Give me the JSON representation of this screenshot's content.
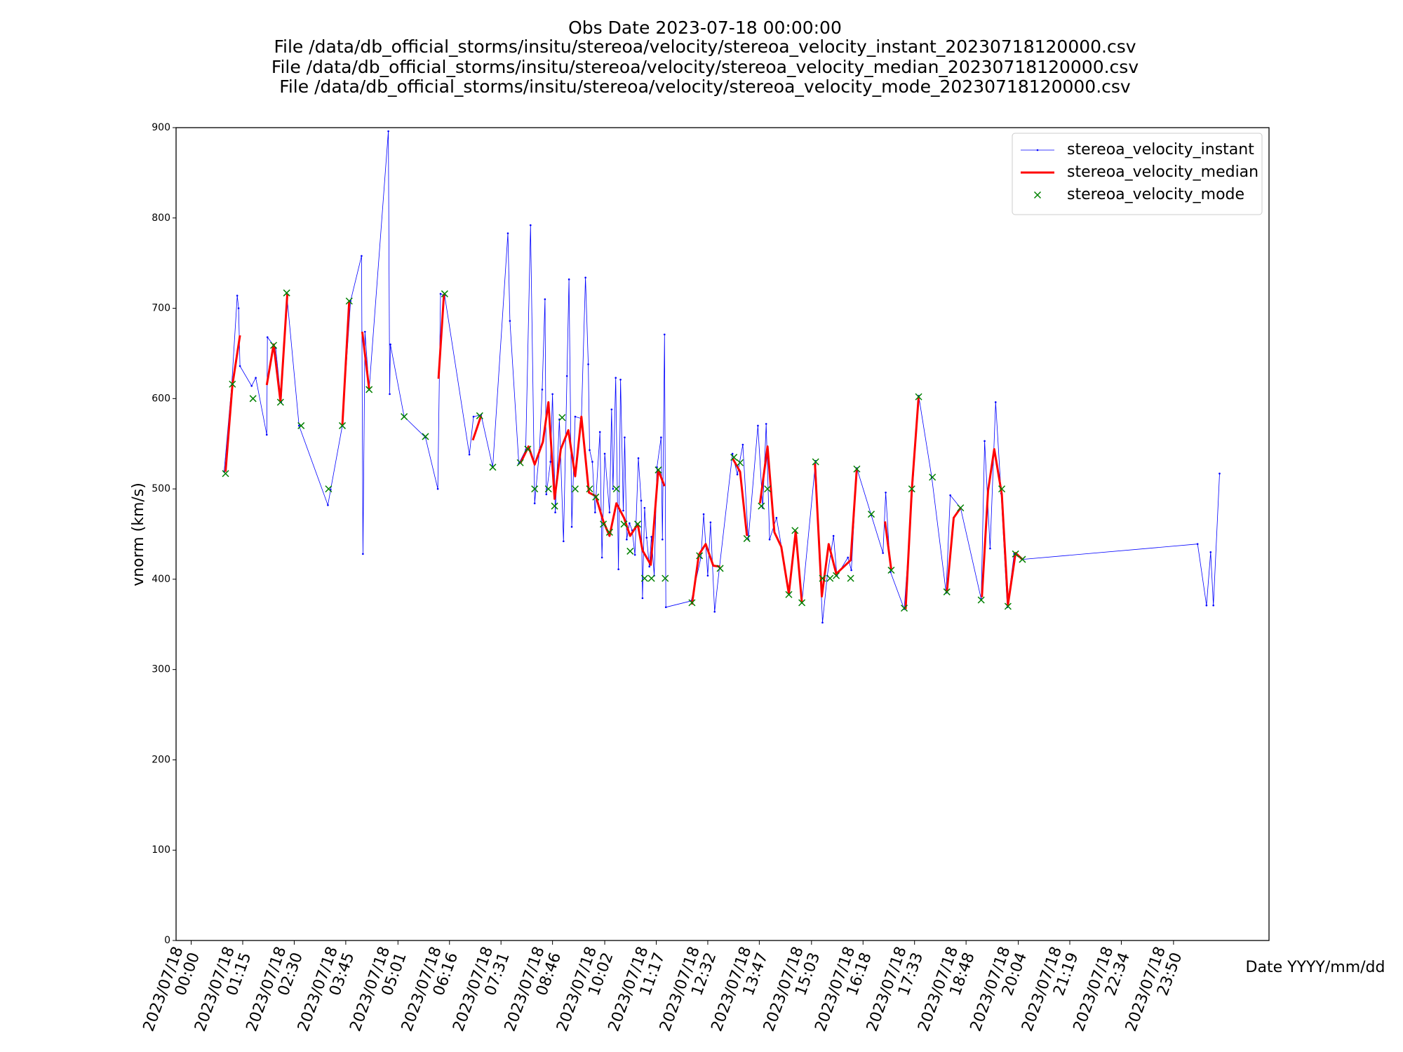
{
  "chart_data": {
    "type": "line",
    "title": [
      "Obs Date 2023-07-18 00:00:00",
      "File /data/db_official_storms/insitu/stereoa/velocity/stereoa_velocity_instant_20230718120000.csv",
      "File /data/db_official_storms/insitu/stereoa/velocity/stereoa_velocity_median_20230718120000.csv",
      "File /data/db_official_storms/insitu/stereoa/velocity/stereoa_velocity_mode_20230718120000.csv"
    ],
    "xlabel": "Date YYYY/mm/dd",
    "ylabel": "vnorm (km/s)",
    "xlim": [
      "2023-07-17T23:38",
      "2023-07-19T02:09"
    ],
    "xticks": [
      {
        "value": "2023-07-18T00:00",
        "label": [
          "2023/07/18",
          "00:00"
        ]
      },
      {
        "value": "2023-07-18T01:15",
        "label": [
          "2023/07/18",
          "01:15"
        ]
      },
      {
        "value": "2023-07-18T02:30",
        "label": [
          "2023/07/18",
          "02:30"
        ]
      },
      {
        "value": "2023-07-18T03:45",
        "label": [
          "2023/07/18",
          "03:45"
        ]
      },
      {
        "value": "2023-07-18T05:01",
        "label": [
          "2023/07/18",
          "05:01"
        ]
      },
      {
        "value": "2023-07-18T06:16",
        "label": [
          "2023/07/18",
          "06:16"
        ]
      },
      {
        "value": "2023-07-18T07:31",
        "label": [
          "2023/07/18",
          "07:31"
        ]
      },
      {
        "value": "2023-07-18T08:46",
        "label": [
          "2023/07/18",
          "08:46"
        ]
      },
      {
        "value": "2023-07-18T10:02",
        "label": [
          "2023/07/18",
          "10:02"
        ]
      },
      {
        "value": "2023-07-18T11:17",
        "label": [
          "2023/07/18",
          "11:17"
        ]
      },
      {
        "value": "2023-07-18T12:32",
        "label": [
          "2023/07/18",
          "12:32"
        ]
      },
      {
        "value": "2023-07-18T13:47",
        "label": [
          "2023/07/18",
          "13:47"
        ]
      },
      {
        "value": "2023-07-18T15:03",
        "label": [
          "2023/07/18",
          "15:03"
        ]
      },
      {
        "value": "2023-07-18T16:18",
        "label": [
          "2023/07/18",
          "16:18"
        ]
      },
      {
        "value": "2023-07-18T17:33",
        "label": [
          "2023/07/18",
          "17:33"
        ]
      },
      {
        "value": "2023-07-18T18:48",
        "label": [
          "2023/07/18",
          "18:48"
        ]
      },
      {
        "value": "2023-07-18T20:04",
        "label": [
          "2023/07/18",
          "20:04"
        ]
      },
      {
        "value": "2023-07-18T21:19",
        "label": [
          "2023/07/18",
          "21:19"
        ]
      },
      {
        "value": "2023-07-18T22:34",
        "label": [
          "2023/07/18",
          "22:34"
        ]
      },
      {
        "value": "2023-07-18T23:50",
        "label": [
          "2023/07/18",
          "23:50"
        ]
      }
    ],
    "ylim": [
      0,
      900
    ],
    "yticks": [
      0,
      100,
      200,
      300,
      400,
      500,
      600,
      700,
      800,
      900
    ],
    "grid": false,
    "legend": "upper right",
    "series": [
      {
        "name": "stereoa_velocity_instant",
        "color": "#0000ff",
        "style": "line",
        "x": [
          "2023-07-18T00:48",
          "2023-07-18T00:59",
          "2023-07-18T01:07",
          "2023-07-18T01:09",
          "2023-07-18T01:11",
          "2023-07-18T01:28",
          "2023-07-18T01:34",
          "2023-07-18T01:50",
          "2023-07-18T01:51",
          "2023-07-18T02:03",
          "2023-07-18T02:11",
          "2023-07-18T02:19",
          "2023-07-18T02:37",
          "2023-07-18T03:19",
          "2023-07-18T03:23",
          "2023-07-18T03:40",
          "2023-07-18T03:52",
          "2023-07-18T04:08",
          "2023-07-18T04:10",
          "2023-07-18T04:13",
          "2023-07-18T04:19",
          "2023-07-18T04:47",
          "2023-07-18T04:49",
          "2023-07-18T04:50",
          "2023-07-18T05:10",
          "2023-07-18T05:41",
          "2023-07-18T05:59",
          "2023-07-18T06:03",
          "2023-07-18T06:09",
          "2023-07-18T06:45",
          "2023-07-18T06:51",
          "2023-07-18T07:02",
          "2023-07-18T07:19",
          "2023-07-18T07:41",
          "2023-07-18T07:44",
          "2023-07-18T07:57",
          "2023-07-18T08:07",
          "2023-07-18T08:14",
          "2023-07-18T08:20",
          "2023-07-18T08:27",
          "2023-07-18T08:31",
          "2023-07-18T08:35",
          "2023-07-18T08:37",
          "2023-07-18T08:43",
          "2023-07-18T08:46",
          "2023-07-18T08:50",
          "2023-07-18T08:56",
          "2023-07-18T09:02",
          "2023-07-18T09:07",
          "2023-07-18T09:10",
          "2023-07-18T09:14",
          "2023-07-18T09:19",
          "2023-07-18T09:28",
          "2023-07-18T09:34",
          "2023-07-18T09:38",
          "2023-07-18T09:40",
          "2023-07-18T09:44",
          "2023-07-18T09:48",
          "2023-07-18T09:55",
          "2023-07-18T09:58",
          "2023-07-18T10:02",
          "2023-07-18T10:09",
          "2023-07-18T10:12",
          "2023-07-18T10:14",
          "2023-07-18T10:18",
          "2023-07-18T10:22",
          "2023-07-18T10:25",
          "2023-07-18T10:29",
          "2023-07-18T10:31",
          "2023-07-18T10:34",
          "2023-07-18T10:38",
          "2023-07-18T10:42",
          "2023-07-18T10:46",
          "2023-07-18T10:51",
          "2023-07-18T10:55",
          "2023-07-18T10:57",
          "2023-07-18T11:00",
          "2023-07-18T11:03",
          "2023-07-18T11:07",
          "2023-07-18T11:10",
          "2023-07-18T11:14",
          "2023-07-18T11:18",
          "2023-07-18T11:24",
          "2023-07-18T11:26",
          "2023-07-18T11:29",
          "2023-07-18T11:31",
          "2023-07-18T12:08",
          "2023-07-18T12:22",
          "2023-07-18T12:26",
          "2023-07-18T12:32",
          "2023-07-18T12:36",
          "2023-07-18T12:42",
          "2023-07-18T12:49",
          "2023-07-18T13:08",
          "2023-07-18T13:15",
          "2023-07-18T13:23",
          "2023-07-18T13:31",
          "2023-07-18T13:45",
          "2023-07-18T13:52",
          "2023-07-18T13:57",
          "2023-07-18T14:02",
          "2023-07-18T14:12",
          "2023-07-18T14:31",
          "2023-07-18T14:39",
          "2023-07-18T14:49",
          "2023-07-18T15:09",
          "2023-07-18T15:19",
          "2023-07-18T15:26",
          "2023-07-18T15:35",
          "2023-07-18T15:40",
          "2023-07-18T15:56",
          "2023-07-18T16:01",
          "2023-07-18T16:09",
          "2023-07-18T16:30",
          "2023-07-18T16:47",
          "2023-07-18T16:51",
          "2023-07-18T16:58",
          "2023-07-18T17:18",
          "2023-07-18T17:30",
          "2023-07-18T17:39",
          "2023-07-18T17:58",
          "2023-07-18T18:19",
          "2023-07-18T18:25",
          "2023-07-18T18:40",
          "2023-07-18T19:10",
          "2023-07-18T19:15",
          "2023-07-18T19:23",
          "2023-07-18T19:31",
          "2023-07-18T19:39",
          "2023-07-18T19:48",
          "2023-07-18T19:58",
          "2023-07-18T20:10",
          "2023-07-19T00:25",
          "2023-07-19T00:38",
          "2023-07-19T00:44",
          "2023-07-19T00:48",
          "2023-07-19T00:57"
        ],
        "values": [
          519,
          615,
          714,
          700,
          636,
          614,
          623,
          560,
          668,
          656,
          596,
          716,
          570,
          482,
          499,
          570,
          708,
          758,
          428,
          674,
          610,
          896,
          605,
          660,
          580,
          557,
          500,
          716,
          714,
          538,
          580,
          582,
          524,
          783,
          686,
          528,
          543,
          792,
          484,
          543,
          610,
          710,
          494,
          530,
          605,
          474,
          577,
          442,
          625,
          732,
          458,
          580,
          578,
          734,
          638,
          543,
          530,
          474,
          563,
          424,
          539,
          474,
          588,
          500,
          623,
          411,
          621,
          476,
          557,
          444,
          462,
          454,
          427,
          534,
          487,
          379,
          479,
          446,
          414,
          447,
          404,
          524,
          557,
          444,
          671,
          369,
          376,
          424,
          472,
          404,
          463,
          364,
          413,
          539,
          516,
          549,
          444,
          570,
          479,
          572,
          444,
          468,
          384,
          453,
          374,
          531,
          352,
          404,
          448,
          404,
          424,
          410,
          523,
          471,
          429,
          496,
          408,
          367,
          498,
          603,
          513,
          385,
          493,
          479,
          378,
          553,
          434,
          596,
          495,
          369,
          428,
          422,
          439,
          371,
          430,
          371,
          517
        ]
      },
      {
        "name": "stereoa_velocity_median",
        "color": "#ff0000",
        "style": "line",
        "x": [
          "2023-07-18T00:50",
          "2023-07-18T01:00",
          "2023-07-18T01:11",
          null,
          "2023-07-18T01:50",
          "2023-07-18T02:00",
          "2023-07-18T02:10",
          "2023-07-18T02:20",
          null,
          "2023-07-18T03:40",
          "2023-07-18T03:50",
          null,
          "2023-07-18T04:09",
          "2023-07-18T04:19",
          null,
          "2023-07-18T06:00",
          "2023-07-18T06:08",
          null,
          "2023-07-18T06:50",
          "2023-07-18T07:02",
          null,
          "2023-07-18T07:59",
          "2023-07-18T08:11",
          "2023-07-18T08:20",
          "2023-07-18T08:32",
          "2023-07-18T08:40",
          "2023-07-18T08:49",
          "2023-07-18T08:58",
          "2023-07-18T09:09",
          "2023-07-18T09:19",
          "2023-07-18T09:28",
          "2023-07-18T09:39",
          "2023-07-18T09:49",
          "2023-07-18T10:00",
          "2023-07-18T10:09",
          "2023-07-18T10:19",
          "2023-07-18T10:30",
          "2023-07-18T10:39",
          "2023-07-18T10:50",
          "2023-07-18T10:57",
          "2023-07-18T11:09",
          "2023-07-18T11:20",
          "2023-07-18T11:29",
          null,
          "2023-07-18T12:09",
          "2023-07-18T12:19",
          "2023-07-18T12:29",
          "2023-07-18T12:40",
          "2023-07-18T12:50",
          null,
          "2023-07-18T13:08",
          "2023-07-18T13:19",
          "2023-07-18T13:29",
          null,
          "2023-07-18T13:48",
          "2023-07-18T13:59",
          "2023-07-18T14:09",
          "2023-07-18T14:19",
          "2023-07-18T14:30",
          "2023-07-18T14:40",
          "2023-07-18T14:49",
          null,
          "2023-07-18T15:08",
          "2023-07-18T15:18",
          "2023-07-18T15:28",
          "2023-07-18T15:39",
          "2023-07-18T16:00",
          "2023-07-18T16:09",
          null,
          "2023-07-18T16:50",
          "2023-07-18T16:59",
          null,
          "2023-07-18T17:20",
          "2023-07-18T17:29",
          "2023-07-18T17:39",
          null,
          "2023-07-18T18:20",
          "2023-07-18T18:30",
          "2023-07-18T18:40",
          null,
          "2023-07-18T19:11",
          "2023-07-18T19:20",
          "2023-07-18T19:29",
          "2023-07-18T19:40",
          "2023-07-18T19:49",
          "2023-07-18T20:00",
          "2023-07-18T20:10"
        ],
        "values": [
          519,
          615,
          670,
          null,
          615,
          660,
          597,
          716,
          null,
          570,
          708,
          null,
          674,
          611,
          null,
          622,
          716,
          null,
          554,
          581,
          null,
          528,
          547,
          527,
          552,
          596,
          489,
          544,
          565,
          514,
          580,
          496,
          492,
          464,
          448,
          484,
          468,
          448,
          461,
          432,
          416,
          521,
          503,
          null,
          372,
          427,
          439,
          415,
          414,
          null,
          534,
          519,
          448,
          null,
          484,
          547,
          452,
          436,
          384,
          453,
          374,
          null,
          528,
          381,
          439,
          406,
          421,
          523,
          null,
          464,
          411,
          null,
          367,
          499,
          603,
          null,
          385,
          468,
          479,
          null,
          380,
          498,
          544,
          494,
          372,
          429,
          422
        ]
      },
      {
        "name": "stereoa_velocity_mode",
        "color": "#008000",
        "style": "marker",
        "x": [
          "2023-07-18T00:50",
          "2023-07-18T01:00",
          "2023-07-18T01:30",
          "2023-07-18T02:00",
          "2023-07-18T02:10",
          "2023-07-18T02:19",
          "2023-07-18T02:40",
          "2023-07-18T03:20",
          "2023-07-18T03:40",
          "2023-07-18T03:50",
          "2023-07-18T04:19",
          "2023-07-18T05:10",
          "2023-07-18T05:41",
          "2023-07-18T06:09",
          "2023-07-18T07:00",
          "2023-07-18T07:19",
          "2023-07-18T07:59",
          "2023-07-18T08:10",
          "2023-07-18T08:20",
          "2023-07-18T08:40",
          "2023-07-18T08:49",
          "2023-07-18T09:00",
          "2023-07-18T09:19",
          "2023-07-18T09:40",
          "2023-07-18T09:49",
          "2023-07-18T10:00",
          "2023-07-18T10:09",
          "2023-07-18T10:19",
          "2023-07-18T10:30",
          "2023-07-18T10:39",
          "2023-07-18T10:50",
          "2023-07-18T11:00",
          "2023-07-18T11:10",
          "2023-07-18T11:20",
          "2023-07-18T11:30",
          "2023-07-18T12:09",
          "2023-07-18T12:20",
          "2023-07-18T12:50",
          "2023-07-18T13:10",
          "2023-07-18T13:19",
          "2023-07-18T13:29",
          "2023-07-18T13:50",
          "2023-07-18T13:59",
          "2023-07-18T14:30",
          "2023-07-18T14:39",
          "2023-07-18T14:49",
          "2023-07-18T15:09",
          "2023-07-18T15:19",
          "2023-07-18T15:30",
          "2023-07-18T15:39",
          "2023-07-18T16:00",
          "2023-07-18T16:09",
          "2023-07-18T16:30",
          "2023-07-18T16:59",
          "2023-07-18T17:18",
          "2023-07-18T17:29",
          "2023-07-18T17:39",
          "2023-07-18T17:59",
          "2023-07-18T18:20",
          "2023-07-18T18:40",
          "2023-07-18T19:10",
          "2023-07-18T19:40",
          "2023-07-18T19:49",
          "2023-07-18T20:00",
          "2023-07-18T20:10"
        ],
        "values": [
          517,
          616,
          600,
          659,
          596,
          717,
          570,
          500,
          570,
          708,
          610,
          580,
          558,
          716,
          581,
          524,
          529,
          544,
          500,
          500,
          481,
          579,
          500,
          500,
          491,
          461,
          452,
          500,
          461,
          431,
          461,
          401,
          401,
          521,
          401,
          374,
          426,
          412,
          535,
          529,
          445,
          481,
          500,
          383,
          454,
          374,
          530,
          401,
          401,
          404,
          401,
          522,
          472,
          410,
          368,
          500,
          602,
          513,
          386,
          479,
          377,
          500,
          370,
          428,
          422
        ]
      }
    ]
  }
}
